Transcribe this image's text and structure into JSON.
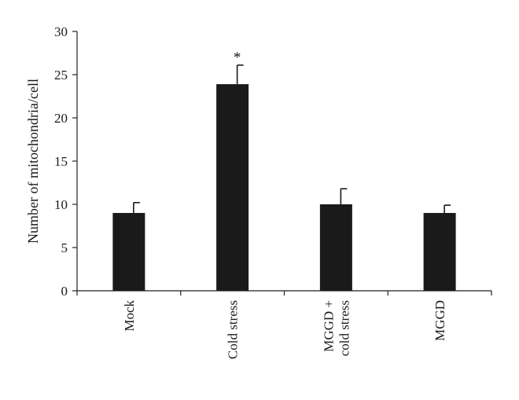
{
  "chart_data": {
    "type": "bar",
    "title": "",
    "xlabel": "",
    "ylabel": "Number of mitochondria/cell",
    "ylim": [
      0,
      30
    ],
    "yticks": [
      0,
      5,
      10,
      15,
      20,
      25,
      30
    ],
    "grid": false,
    "legend": "none",
    "bar_color": "#1a1a1a",
    "categories": [
      {
        "label_lines": [
          "Mock"
        ]
      },
      {
        "label_lines": [
          "Cold stress"
        ]
      },
      {
        "label_lines": [
          "MGGD +",
          "cold stress"
        ]
      },
      {
        "label_lines": [
          "MGGD"
        ]
      }
    ],
    "values": [
      9.0,
      23.9,
      10.0,
      9.0
    ],
    "errors": [
      1.2,
      2.2,
      1.8,
      0.9
    ],
    "annotations": [
      "",
      "*",
      "",
      ""
    ]
  }
}
